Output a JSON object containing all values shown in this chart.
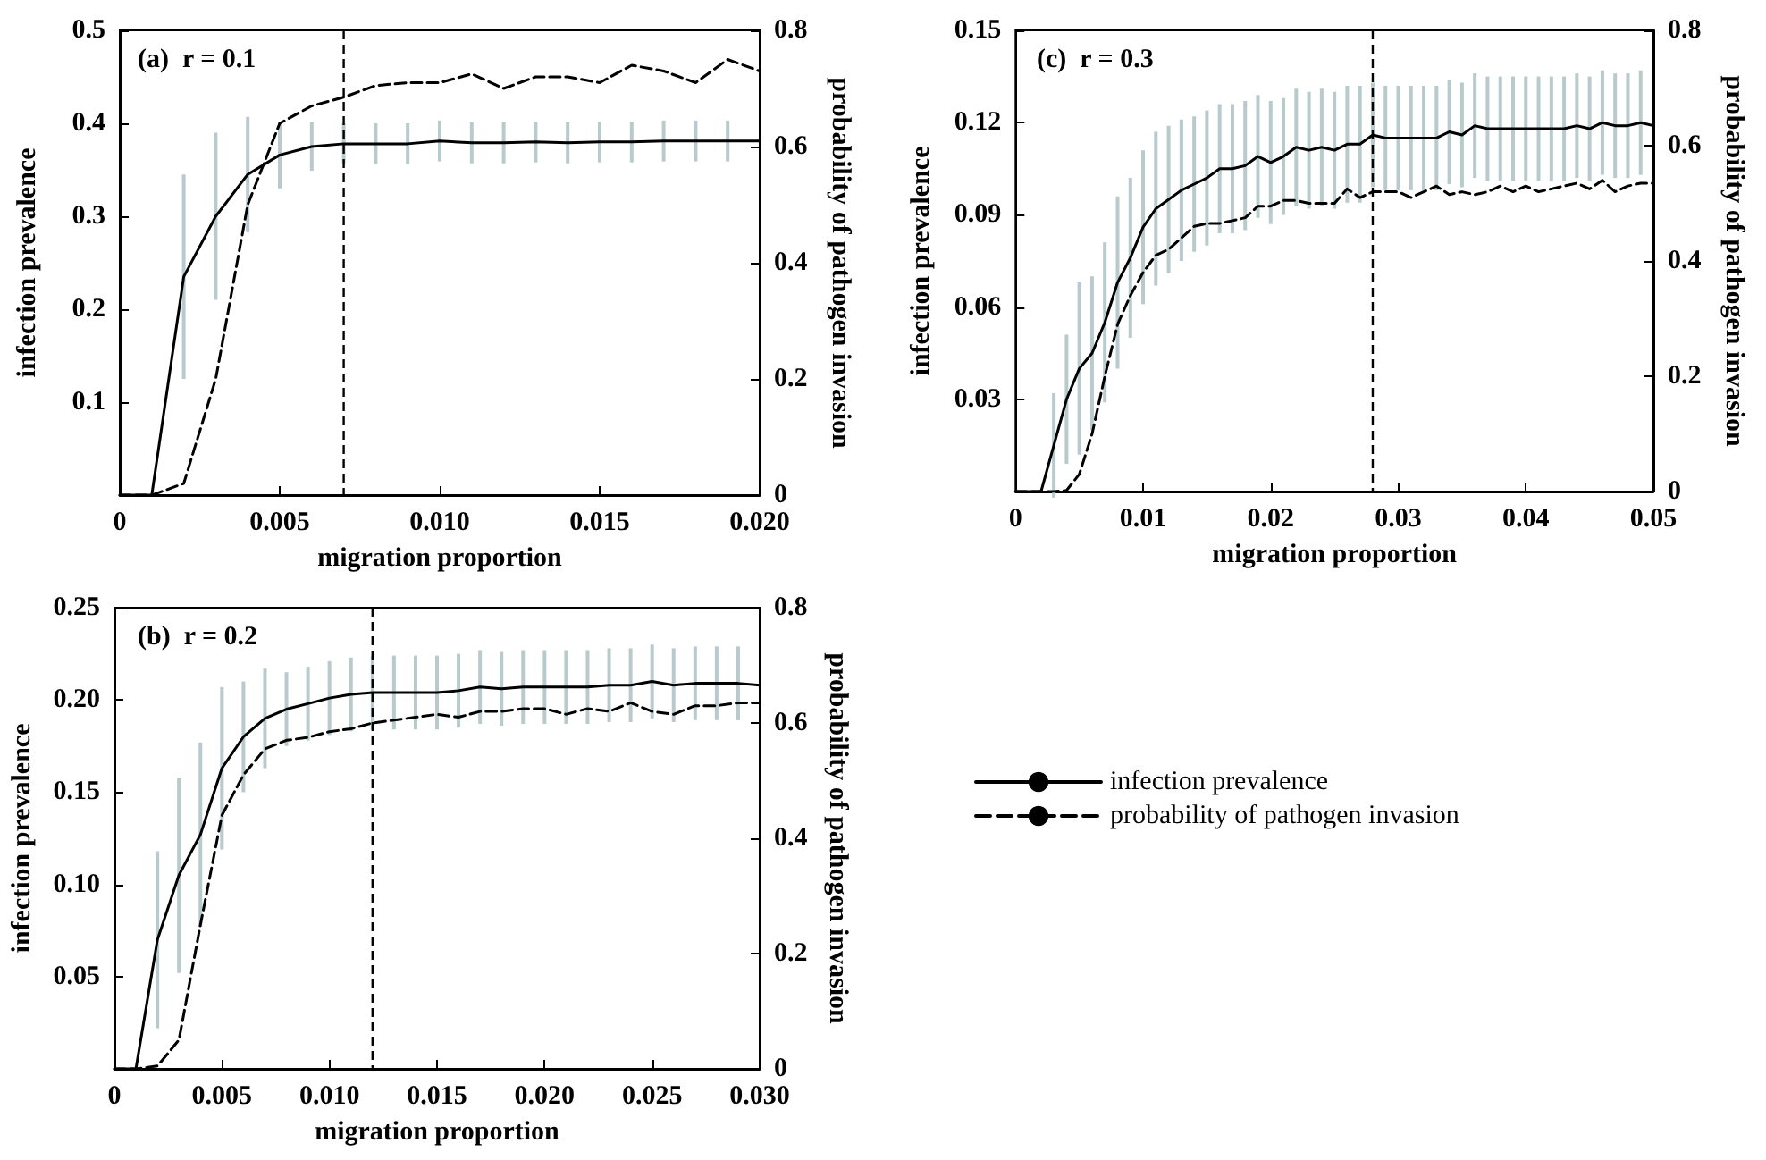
{
  "chart_data": [
    {
      "type": "line",
      "title": "(a)  r = 0.1",
      "xlabel": "migration proportion",
      "ylabel": "infection prevalence",
      "y2label": "probability of pathogen invasion",
      "x": [
        0,
        0.001,
        0.002,
        0.003,
        0.004,
        0.005,
        0.006,
        0.007,
        0.008,
        0.009,
        0.01,
        0.011,
        0.012,
        0.013,
        0.014,
        0.015,
        0.016,
        0.017,
        0.018,
        0.019,
        0.02
      ],
      "series": [
        {
          "color": "#000000",
          "line_style": "solid",
          "values": [
            0,
            0,
            0.235,
            0.3,
            0.345,
            0.366,
            0.375,
            0.378,
            0.378,
            0.378,
            0.381,
            0.379,
            0.379,
            0.38,
            0.379,
            0.38,
            0.38,
            0.381,
            0.381,
            0.381,
            0.381
          ],
          "errors": [
            null,
            null,
            0.11,
            0.09,
            0.062,
            0.036,
            0.026,
            0.022,
            0.022,
            0.022,
            0.022,
            0.022,
            0.022,
            0.022,
            0.022,
            0.022,
            0.022,
            0.022,
            0.022,
            0.022,
            null
          ]
        },
        {
          "color": "#000000",
          "line_style": "dashed",
          "axis": "y2",
          "values": [
            0,
            0,
            0.02,
            0.2,
            0.5,
            0.64,
            0.67,
            0.685,
            0.705,
            0.71,
            0.71,
            0.725,
            0.7,
            0.72,
            0.72,
            0.71,
            0.74,
            0.73,
            0.71,
            0.75,
            0.73
          ]
        }
      ],
      "xlim": [
        0,
        0.02
      ],
      "xticks": [
        0,
        0.005,
        {
          "value": 0.01,
          "label": "0.010"
        },
        0.015,
        {
          "value": 0.02,
          "label": "0.020"
        }
      ],
      "ylim": [
        0,
        0.5
      ],
      "yticks": [
        {
          "value": 0,
          "label": null
        },
        0.1,
        0.2,
        0.3,
        0.4,
        0.5
      ],
      "y2lim": [
        0,
        0.8
      ],
      "y2ticks": [
        0,
        0.2,
        0.4,
        0.6,
        0.8
      ],
      "ref_lines": [
        {
          "axis": "x",
          "value": 0.007,
          "line_style": "dashed",
          "color": "#000000"
        }
      ],
      "marker": "none",
      "grid": false,
      "legend": false
    },
    {
      "type": "line",
      "title": "(c)  r = 0.3",
      "xlabel": "migration proportion",
      "ylabel": "infection prevalence",
      "y2label": "probability of pathogen invasion",
      "x": [
        0,
        0.001,
        0.002,
        0.003,
        0.004,
        0.005,
        0.006,
        0.007,
        0.008,
        0.009,
        0.01,
        0.011,
        0.012,
        0.013,
        0.014,
        0.015,
        0.016,
        0.017,
        0.018,
        0.019,
        0.02,
        0.021,
        0.022,
        0.023,
        0.024,
        0.025,
        0.026,
        0.027,
        0.028,
        0.029,
        0.03,
        0.031,
        0.032,
        0.033,
        0.034,
        0.035,
        0.036,
        0.037,
        0.038,
        0.039,
        0.04,
        0.041,
        0.042,
        0.043,
        0.044,
        0.045,
        0.046,
        0.047,
        0.048,
        0.049,
        0.05
      ],
      "series": [
        {
          "color": "#000000",
          "line_style": "solid",
          "values": [
            0,
            0,
            0,
            0.015,
            0.03,
            0.04,
            0.045,
            0.055,
            0.068,
            0.076,
            0.086,
            0.092,
            0.095,
            0.098,
            0.1,
            0.102,
            0.105,
            0.105,
            0.106,
            0.109,
            0.107,
            0.109,
            0.112,
            0.111,
            0.112,
            0.111,
            0.113,
            0.113,
            0.116,
            0.115,
            0.115,
            0.115,
            0.115,
            0.115,
            0.117,
            0.116,
            0.119,
            0.118,
            0.118,
            0.118,
            0.118,
            0.118,
            0.118,
            0.118,
            0.119,
            0.118,
            0.12,
            0.119,
            0.119,
            0.12,
            0.119
          ],
          "errors": [
            null,
            null,
            null,
            0.017,
            0.021,
            0.028,
            0.025,
            0.026,
            0.028,
            0.026,
            0.025,
            0.025,
            0.024,
            0.023,
            0.022,
            0.022,
            0.021,
            0.021,
            0.021,
            0.02,
            0.02,
            0.019,
            0.019,
            0.019,
            0.019,
            0.019,
            0.019,
            0.019,
            0.017,
            0.017,
            0.017,
            0.017,
            0.017,
            0.017,
            0.017,
            0.017,
            0.017,
            0.017,
            0.017,
            0.017,
            0.017,
            0.017,
            0.017,
            0.017,
            0.017,
            0.017,
            0.017,
            0.017,
            0.017,
            0.017,
            null
          ]
        },
        {
          "color": "#000000",
          "line_style": "dashed",
          "axis": "y2",
          "values": [
            0,
            0,
            0,
            0,
            0.002,
            0.03,
            0.1,
            0.2,
            0.29,
            0.34,
            0.38,
            0.41,
            0.42,
            0.44,
            0.46,
            0.465,
            0.465,
            0.47,
            0.475,
            0.495,
            0.495,
            0.505,
            0.505,
            0.5,
            0.5,
            0.5,
            0.525,
            0.51,
            0.52,
            0.52,
            0.52,
            0.51,
            0.52,
            0.53,
            0.515,
            0.52,
            0.515,
            0.52,
            0.53,
            0.52,
            0.53,
            0.52,
            0.525,
            0.53,
            0.535,
            0.525,
            0.54,
            0.52,
            0.53,
            0.535,
            0.535
          ]
        }
      ],
      "xlim": [
        0,
        0.05
      ],
      "xticks": [
        0,
        0.01,
        0.02,
        0.03,
        0.04,
        0.05
      ],
      "ylim": [
        0,
        0.15
      ],
      "yticks": [
        {
          "value": 0,
          "label": null
        },
        0.03,
        0.06,
        0.09,
        0.12,
        0.15
      ],
      "y2lim": [
        0,
        0.8
      ],
      "y2ticks": [
        0,
        0.2,
        0.4,
        0.6,
        0.8
      ],
      "ref_lines": [
        {
          "axis": "x",
          "value": 0.028,
          "line_style": "dashed",
          "color": "#000000"
        }
      ],
      "marker": "none",
      "grid": false,
      "legend": false
    },
    {
      "type": "line",
      "title": "(b)  r = 0.2",
      "xlabel": "migration proportion",
      "ylabel": "infection prevalence",
      "y2label": "probability of pathogen invasion",
      "x": [
        0,
        0.001,
        0.002,
        0.003,
        0.004,
        0.005,
        0.006,
        0.007,
        0.008,
        0.009,
        0.01,
        0.011,
        0.012,
        0.013,
        0.014,
        0.015,
        0.016,
        0.017,
        0.018,
        0.019,
        0.02,
        0.021,
        0.022,
        0.023,
        0.024,
        0.025,
        0.026,
        0.027,
        0.028,
        0.029,
        0.03
      ],
      "series": [
        {
          "name": "infection prevalence",
          "color": "#000000",
          "line_style": "solid",
          "values": [
            0,
            0,
            0.07,
            0.105,
            0.127,
            0.163,
            0.18,
            0.19,
            0.195,
            0.198,
            0.201,
            0.203,
            0.204,
            0.204,
            0.204,
            0.204,
            0.205,
            0.207,
            0.206,
            0.207,
            0.207,
            0.207,
            0.207,
            0.208,
            0.208,
            0.21,
            0.208,
            0.209,
            0.209,
            0.209,
            0.208
          ],
          "errors": [
            null,
            null,
            0.048,
            0.053,
            0.05,
            0.044,
            0.03,
            0.027,
            0.02,
            0.02,
            0.02,
            0.02,
            0.02,
            0.02,
            0.02,
            0.02,
            0.02,
            0.02,
            0.02,
            0.02,
            0.02,
            0.02,
            0.02,
            0.02,
            0.02,
            0.02,
            0.02,
            0.02,
            0.02,
            0.02,
            null
          ]
        },
        {
          "name": "probability of pathogen invasion",
          "color": "#000000",
          "line_style": "dashed",
          "axis": "y2",
          "values": [
            0,
            0,
            0.005,
            0.05,
            0.25,
            0.44,
            0.51,
            0.555,
            0.57,
            0.575,
            0.585,
            0.59,
            0.6,
            0.605,
            0.61,
            0.615,
            0.61,
            0.62,
            0.62,
            0.625,
            0.625,
            0.615,
            0.625,
            0.62,
            0.635,
            0.62,
            0.615,
            0.63,
            0.63,
            0.635,
            0.635
          ]
        }
      ],
      "xlim": [
        0,
        0.03
      ],
      "xticks": [
        0,
        0.005,
        {
          "value": 0.01,
          "label": "0.010"
        },
        0.015,
        {
          "value": 0.02,
          "label": "0.020"
        },
        0.025,
        {
          "value": 0.03,
          "label": "0.030"
        }
      ],
      "ylim": [
        0,
        0.25
      ],
      "yticks": [
        {
          "value": 0,
          "label": null
        },
        0.05,
        {
          "value": 0.1,
          "label": "0.10"
        },
        0.15,
        {
          "value": 0.2,
          "label": "0.20"
        },
        0.25
      ],
      "y2lim": [
        0,
        0.8
      ],
      "y2ticks": [
        0,
        0.2,
        0.4,
        0.6,
        0.8
      ],
      "ref_lines": [
        {
          "axis": "x",
          "value": 0.012,
          "line_style": "dashed",
          "color": "#000000"
        }
      ],
      "marker": "none",
      "grid": false,
      "legend": "right"
    }
  ]
}
